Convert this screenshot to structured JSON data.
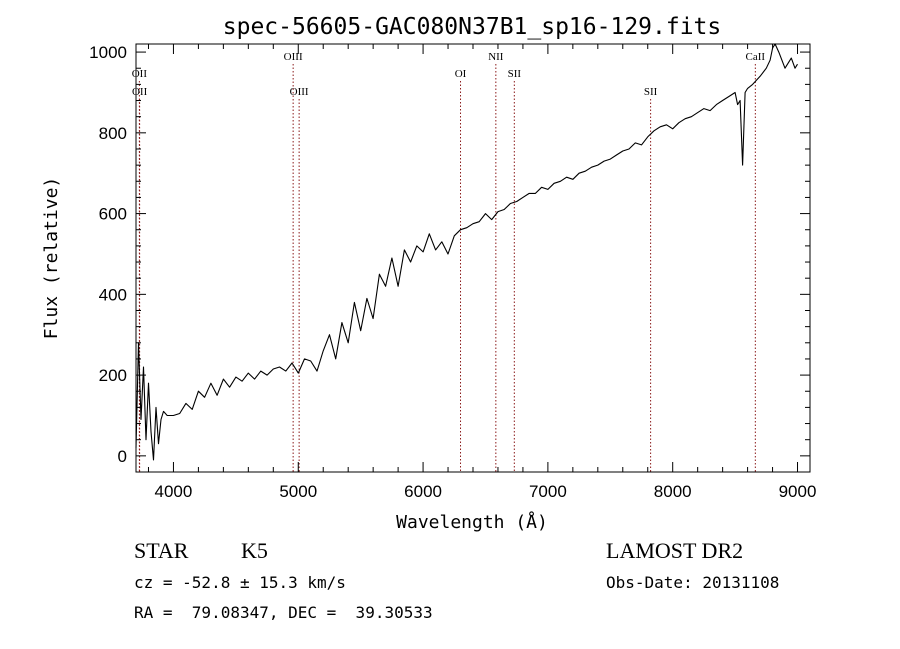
{
  "chart_data": {
    "type": "line",
    "title": "spec-56605-GAC080N37B1_sp16-129.fits",
    "xlabel": "Wavelength (Å)",
    "ylabel": "Flux (relative)",
    "xlim": [
      3700,
      9100
    ],
    "ylim": [
      -40,
      1020
    ],
    "x_ticks": [
      4000,
      5000,
      6000,
      7000,
      8000,
      9000
    ],
    "y_ticks": [
      0,
      200,
      400,
      600,
      800,
      1000
    ],
    "grid": false,
    "series": [
      {
        "x": [
          3700,
          3720,
          3740,
          3760,
          3780,
          3800,
          3820,
          3840,
          3860,
          3880,
          3900,
          3920,
          3950,
          4000,
          4050,
          4100,
          4150,
          4200,
          4250,
          4300,
          4350,
          4400,
          4450,
          4500,
          4550,
          4600,
          4650,
          4700,
          4750,
          4800,
          4850,
          4900,
          4950,
          5000,
          5050,
          5100,
          5150,
          5200,
          5250,
          5300,
          5350,
          5400,
          5450,
          5500,
          5550,
          5600,
          5650,
          5700,
          5750,
          5800,
          5850,
          5900,
          5950,
          6000,
          6050,
          6100,
          6150,
          6200,
          6250,
          6300,
          6350,
          6400,
          6450,
          6500,
          6550,
          6600,
          6650,
          6700,
          6750,
          6800,
          6850,
          6900,
          6950,
          7000,
          7050,
          7100,
          7150,
          7200,
          7250,
          7300,
          7350,
          7400,
          7450,
          7500,
          7550,
          7600,
          7650,
          7700,
          7750,
          7800,
          7850,
          7900,
          7950,
          8000,
          8050,
          8100,
          8150,
          8200,
          8250,
          8300,
          8350,
          8400,
          8450,
          8500,
          8520,
          8540,
          8560,
          8580,
          8600,
          8640,
          8700,
          8750,
          8780,
          8800,
          8820,
          8850,
          8900,
          8950,
          8980,
          9000
        ],
        "y": [
          20,
          280,
          90,
          220,
          40,
          180,
          60,
          -10,
          120,
          30,
          90,
          110,
          100,
          100,
          105,
          130,
          115,
          160,
          145,
          180,
          150,
          190,
          170,
          195,
          185,
          205,
          190,
          210,
          200,
          215,
          220,
          210,
          230,
          205,
          240,
          235,
          210,
          260,
          300,
          240,
          330,
          280,
          380,
          310,
          390,
          340,
          450,
          420,
          490,
          420,
          510,
          480,
          520,
          505,
          550,
          510,
          530,
          500,
          545,
          560,
          565,
          575,
          580,
          600,
          585,
          605,
          610,
          625,
          630,
          640,
          650,
          650,
          665,
          660,
          675,
          680,
          690,
          685,
          700,
          705,
          715,
          720,
          730,
          735,
          745,
          755,
          760,
          775,
          770,
          790,
          805,
          815,
          820,
          810,
          825,
          835,
          840,
          850,
          860,
          855,
          870,
          880,
          890,
          900,
          870,
          880,
          720,
          900,
          910,
          920,
          940,
          960,
          980,
          1010,
          1020,
          1000,
          960,
          985,
          960,
          970
        ]
      }
    ],
    "emission_lines": [
      {
        "label": "OII",
        "wavelength": 3727,
        "row": 1
      },
      {
        "label": "OII",
        "wavelength": 3729,
        "row": 2
      },
      {
        "label": "OIII",
        "wavelength": 4959,
        "row": 0
      },
      {
        "label": "OIII",
        "wavelength": 5007,
        "row": 2
      },
      {
        "label": "OI",
        "wavelength": 6300,
        "row": 1
      },
      {
        "label": "NII",
        "wavelength": 6583,
        "row": 0
      },
      {
        "label": "SII",
        "wavelength": 6731,
        "row": 1
      },
      {
        "label": "SII",
        "wavelength": 7823,
        "row": 2
      },
      {
        "label": "CaII",
        "wavelength": 8662,
        "row": 0
      }
    ]
  },
  "info": {
    "class_label": "STAR",
    "subclass": "K5",
    "survey": "LAMOST DR2",
    "velocity": "cz = -52.8 ± 15.3 km/s",
    "obs_date": "Obs-Date: 20131108",
    "coordinates": "RA =  79.08347, DEC =  39.30533"
  },
  "colors": {
    "line": "#000000",
    "emission_marker": "#8b1a1a",
    "axis": "#000000"
  }
}
